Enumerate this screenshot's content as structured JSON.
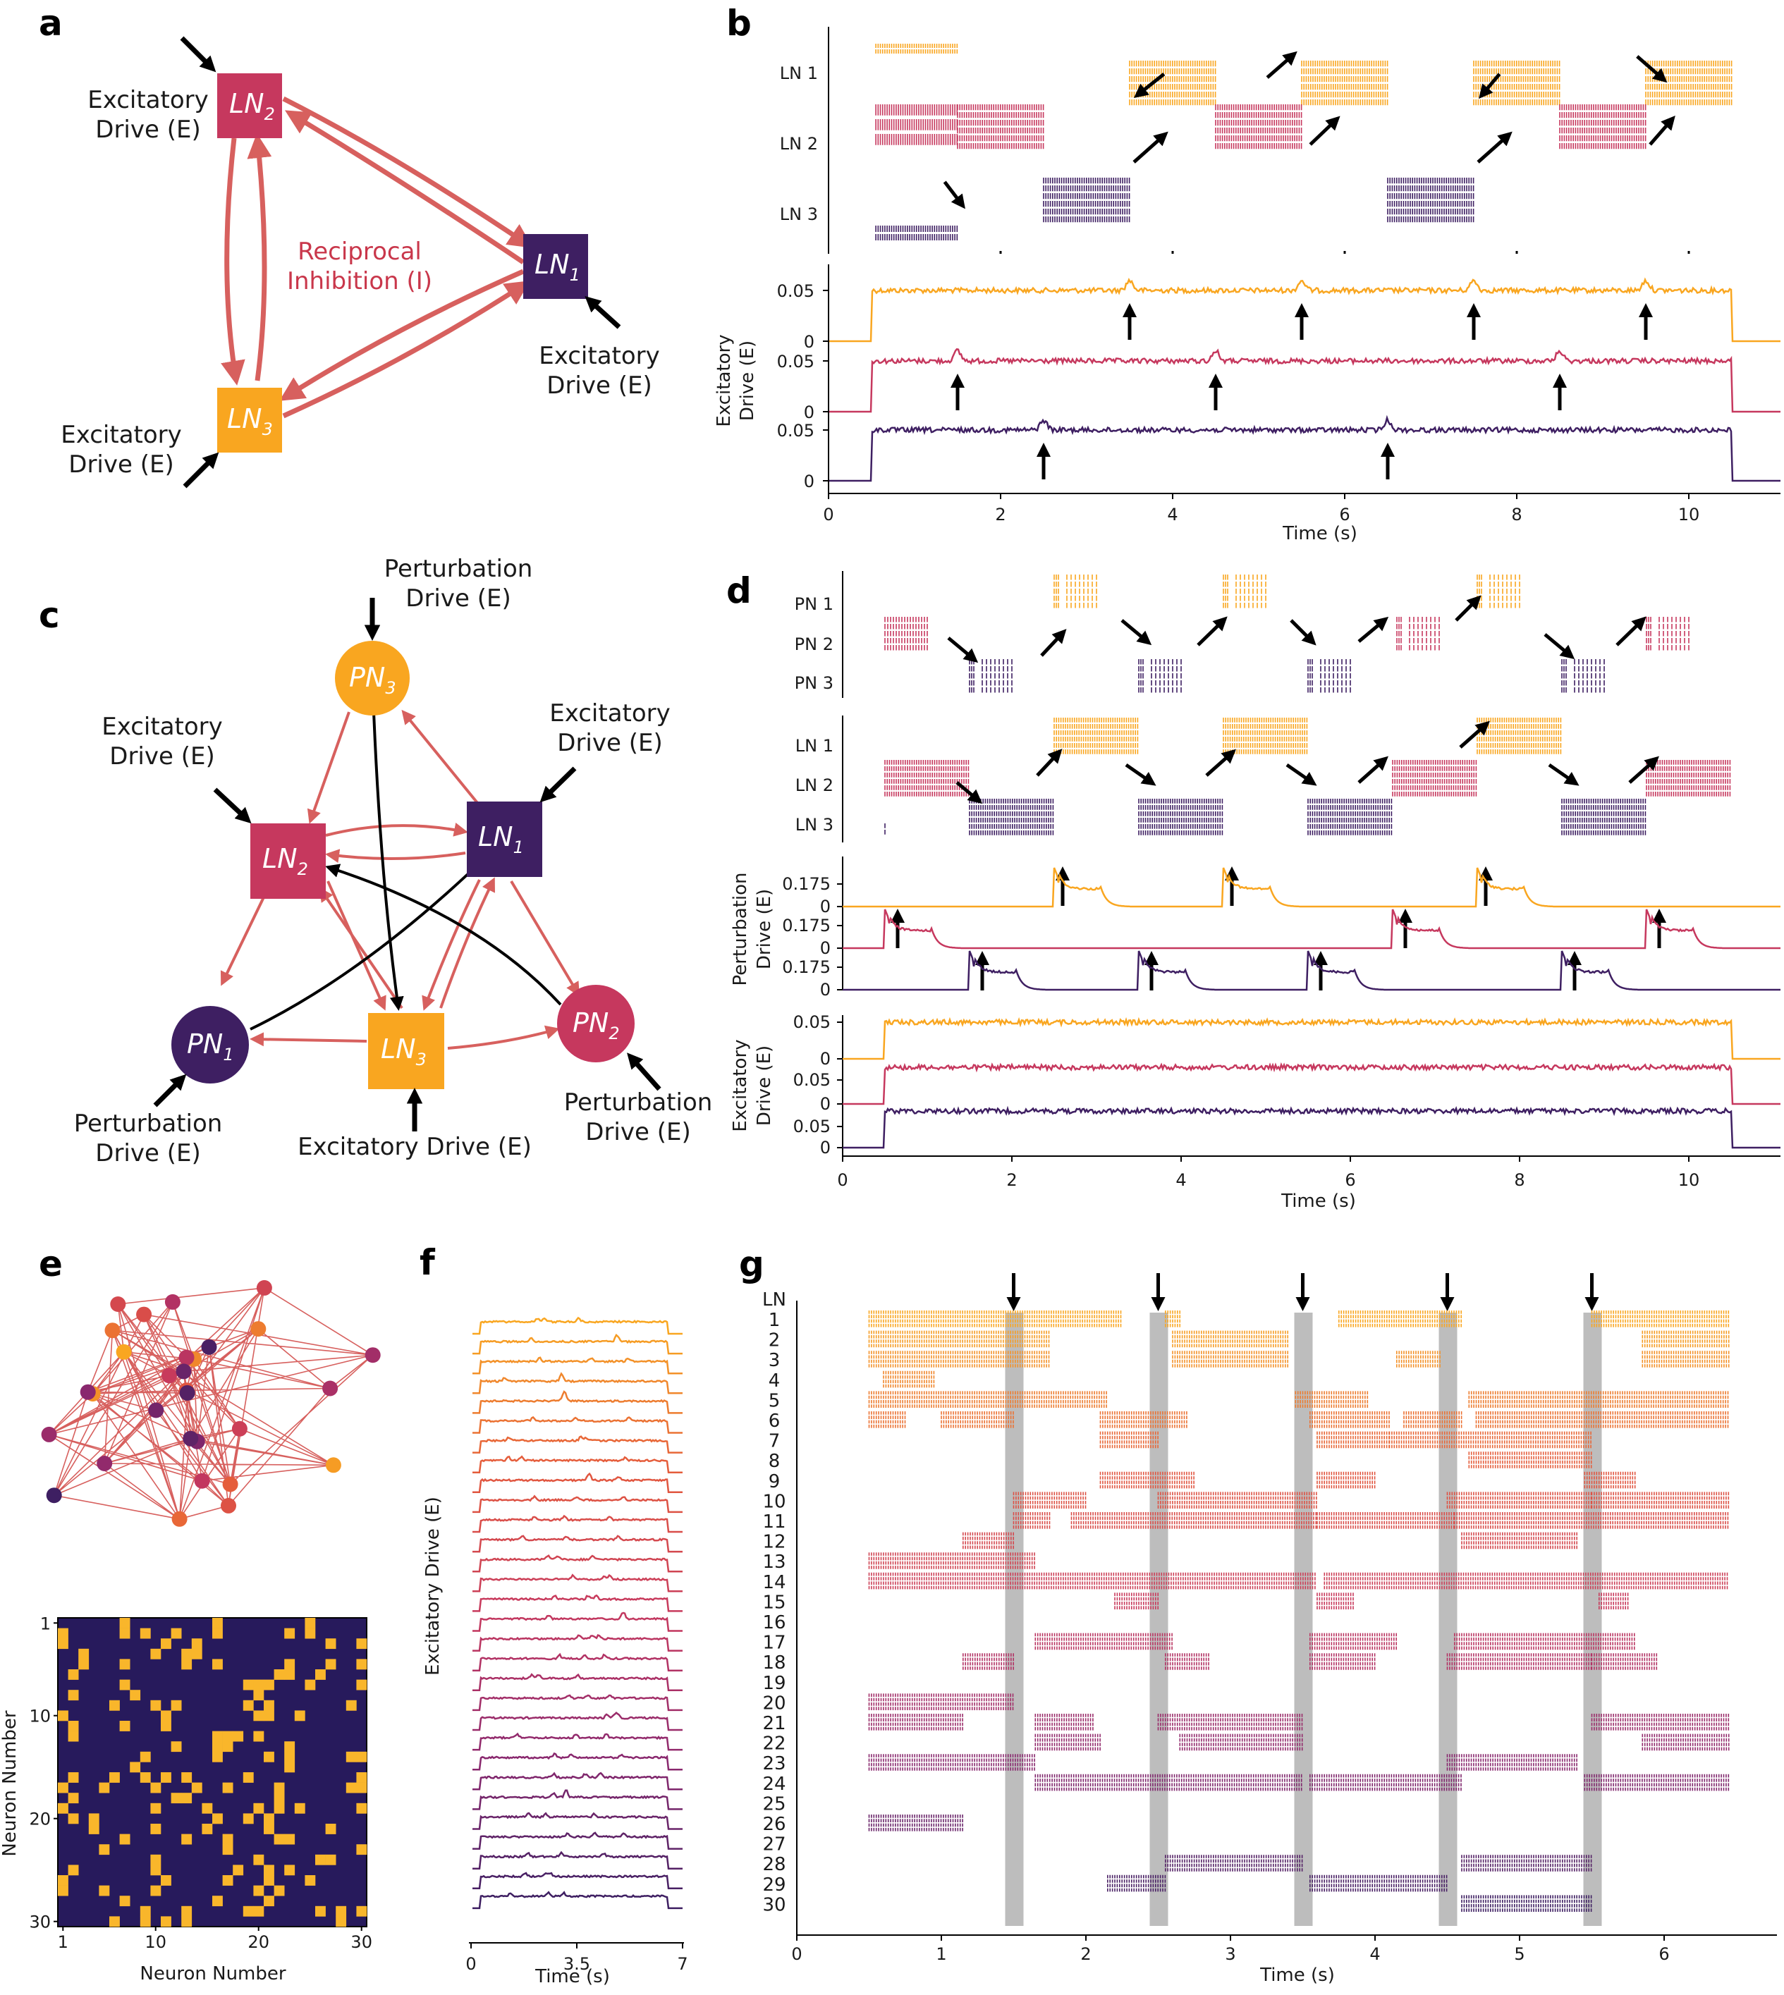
{
  "colors": {
    "orange": "#F9A620",
    "crimson": "#C6385E",
    "purple": "#3E1F62",
    "edge": "#D7605E",
    "arrow": "#000000",
    "reciprocal_text": "#C9374B",
    "matrix_bg": "#271A5C",
    "matrix_on": "#F9B62B",
    "shade": "#BDBDBD"
  },
  "panels": {
    "a": {
      "label": "a",
      "nodes": [
        {
          "id": "LN2",
          "main": "LN",
          "sub": "2",
          "color": "crimson",
          "shape": "square"
        },
        {
          "id": "LN1",
          "main": "LN",
          "sub": "1",
          "color": "purple",
          "shape": "square"
        },
        {
          "id": "LN3",
          "main": "LN",
          "sub": "3",
          "color": "orange",
          "shape": "square"
        }
      ],
      "drive_label_line1": "Excitatory",
      "drive_label_line2": "Drive (E)",
      "reciprocal_line1": "Reciprocal",
      "reciprocal_line2": "Inhibition (I)",
      "icon": "arrow-icon"
    },
    "b": {
      "label": "b",
      "raster_labels": [
        "LN 1",
        "LN 2",
        "LN 3"
      ],
      "ylabel_line1": "Excitatory",
      "ylabel_line2": "Drive (E)",
      "trace_ticks": [
        "0.05",
        "0"
      ],
      "x_ticks": [
        "0",
        "2",
        "4",
        "6",
        "8",
        "10"
      ],
      "xlabel": "Time (s)"
    },
    "c": {
      "label": "c",
      "nodes": [
        {
          "id": "PN3",
          "main": "PN",
          "sub": "3",
          "color": "orange",
          "shape": "circle"
        },
        {
          "id": "LN2",
          "main": "LN",
          "sub": "2",
          "color": "crimson",
          "shape": "square"
        },
        {
          "id": "LN1",
          "main": "LN",
          "sub": "1",
          "color": "purple",
          "shape": "square"
        },
        {
          "id": "PN1",
          "main": "PN",
          "sub": "1",
          "color": "purple",
          "shape": "circle"
        },
        {
          "id": "LN3",
          "main": "LN",
          "sub": "3",
          "color": "orange",
          "shape": "square"
        },
        {
          "id": "PN2",
          "main": "PN",
          "sub": "2",
          "color": "crimson",
          "shape": "circle"
        }
      ],
      "perturb_line1": "Perturbation",
      "drive_line1": "Excitatory",
      "drive_line2": "Drive (E)",
      "ln3_drive": "Excitatory Drive (E)"
    },
    "d": {
      "label": "d",
      "pn_labels": [
        "PN 1",
        "PN 2",
        "PN 3"
      ],
      "ln_labels": [
        "LN 1",
        "LN 2",
        "LN 3"
      ],
      "perturb_ylabel_line1": "Perturbation",
      "perturb_ylabel_line2": "Drive (E)",
      "perturb_ticks": [
        "0.175",
        "0"
      ],
      "excit_ylabel_line1": "Excitatory",
      "excit_ylabel_line2": "Drive (E)",
      "excit_ticks": [
        "0.05",
        "0"
      ],
      "x_ticks": [
        "0",
        "2",
        "4",
        "6",
        "8",
        "10"
      ],
      "xlabel": "Time (s)"
    },
    "e": {
      "label": "e",
      "matrix_yticks": [
        "1",
        "10",
        "20",
        "30"
      ],
      "matrix_xticks": [
        "1",
        "10",
        "20",
        "30"
      ],
      "xlabel": "Neuron Number",
      "ylabel": "Neuron Number"
    },
    "f": {
      "label": "f",
      "ylabel": "Excitatory Drive (E)",
      "x_ticks": [
        "0",
        "3.5",
        "7"
      ],
      "xlabel": "Time (s)"
    },
    "g": {
      "label": "g",
      "ln_header": "LN",
      "row_labels": [
        "1",
        "2",
        "3",
        "4",
        "5",
        "6",
        "7",
        "8",
        "9",
        "10",
        "11",
        "12",
        "13",
        "14",
        "15",
        "16",
        "17",
        "18",
        "19",
        "20",
        "21",
        "22",
        "23",
        "24",
        "25",
        "26",
        "27",
        "28",
        "29",
        "30"
      ],
      "x_ticks": [
        "0",
        "1",
        "2",
        "3",
        "4",
        "5",
        "6"
      ],
      "xlabel": "Time (s)"
    }
  }
}
